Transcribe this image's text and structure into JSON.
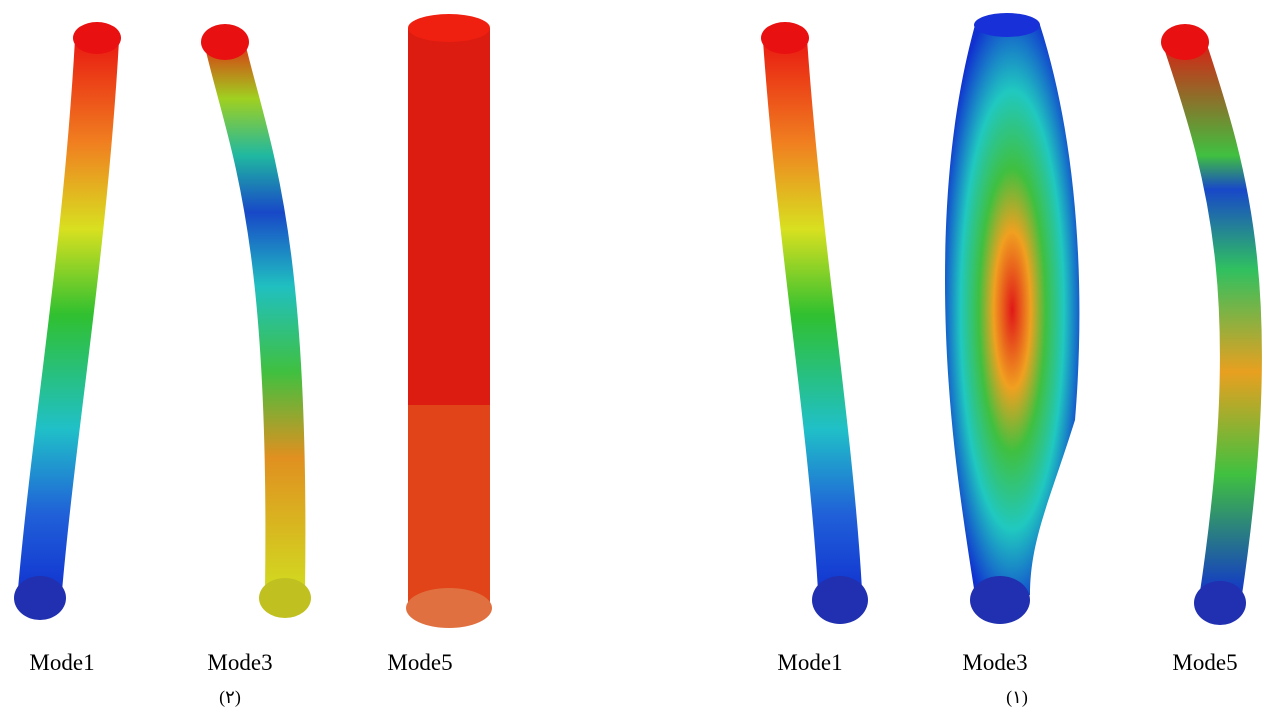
{
  "groups": [
    {
      "labels": [
        "Mode1",
        "Mode3",
        "Mode5"
      ],
      "caption": "(۲)"
    },
    {
      "labels": [
        "Mode1",
        "Mode3",
        "Mode5"
      ],
      "caption": "(۱)"
    }
  ]
}
